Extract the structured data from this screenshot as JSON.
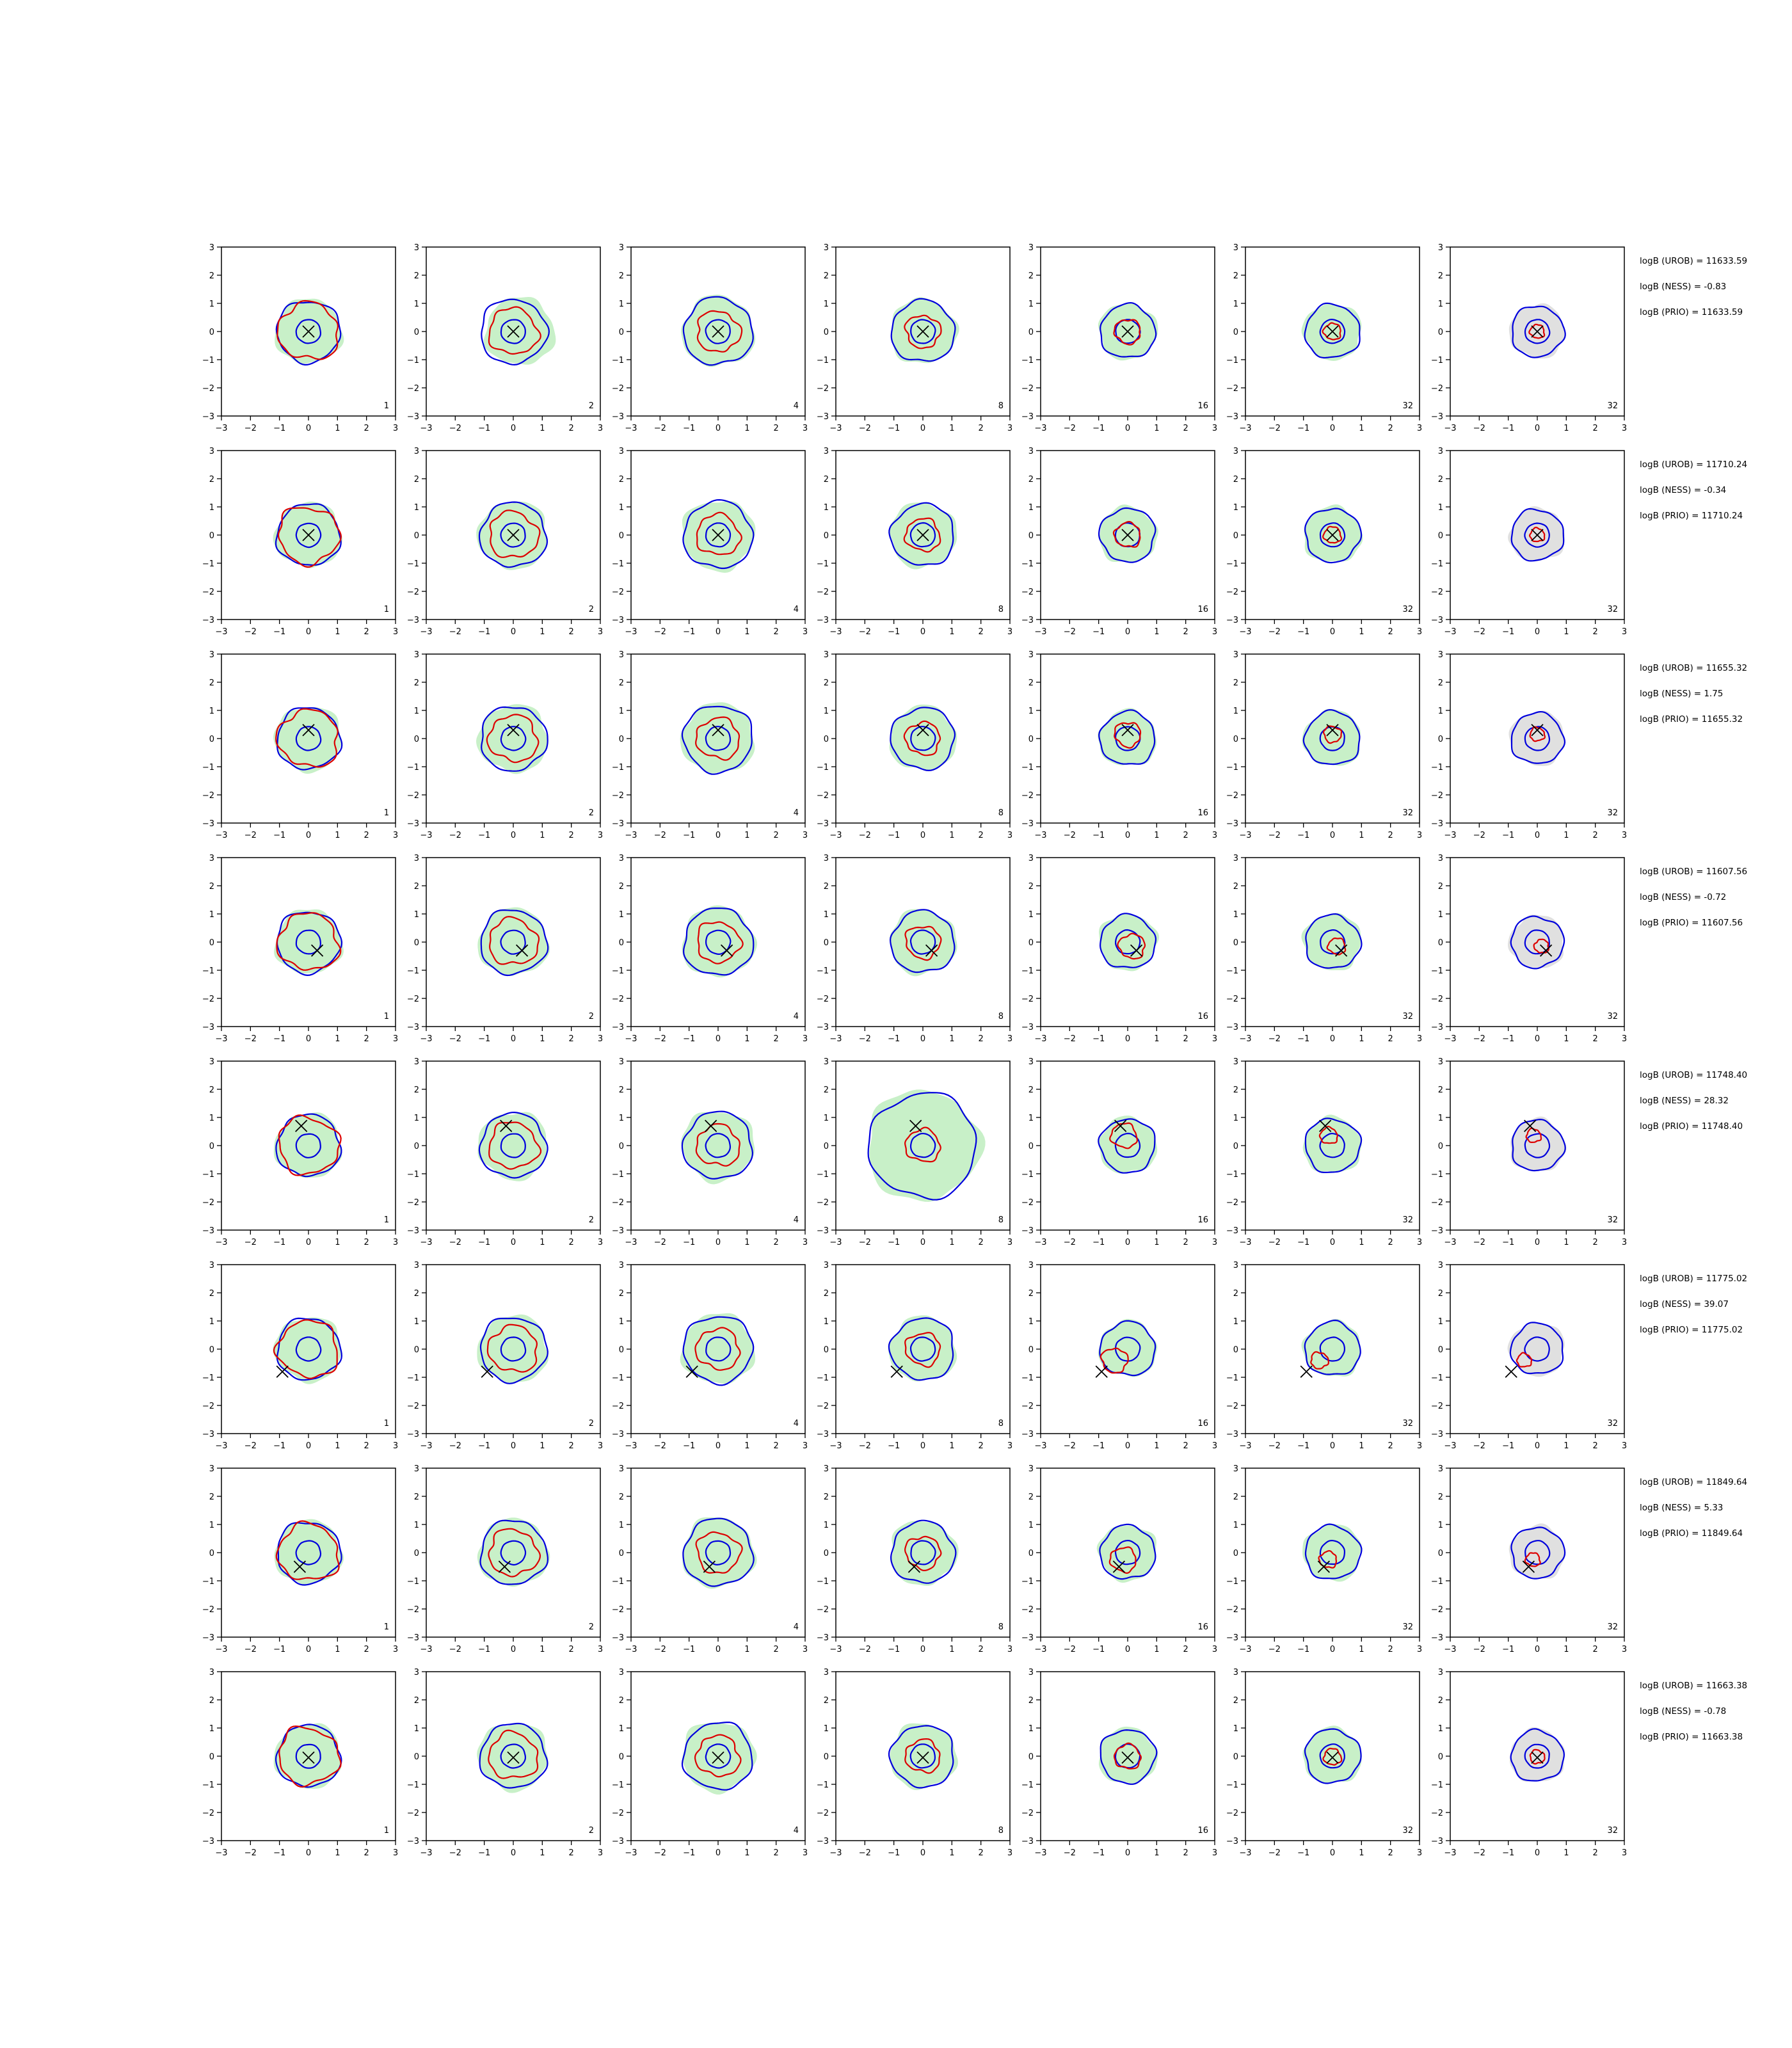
{
  "chart_data": {
    "type": "contour-grid",
    "xlim": [
      -3,
      3
    ],
    "ylim": [
      -3,
      3
    ],
    "xticks": [
      "−3",
      "−2",
      "−1",
      "0",
      "1",
      "2",
      "3"
    ],
    "yticks": [
      "3",
      "2",
      "1",
      "0",
      "−1",
      "−2",
      "−3"
    ],
    "column_labels": [
      "1",
      "2",
      "4",
      "8",
      "16",
      "32",
      "32"
    ],
    "rows": [
      {
        "marker": [
          0.0,
          0.0
        ],
        "annotations": [
          "logB (UROB) = 11633.59",
          "logB (NESS) = -0.83",
          "logB (PRIO) = 11633.59"
        ]
      },
      {
        "marker": [
          0.0,
          0.0
        ],
        "annotations": [
          "logB (UROB) = 11710.24",
          "logB (NESS) = -0.34",
          "logB (PRIO) = 11710.24"
        ]
      },
      {
        "marker": [
          0.0,
          0.3
        ],
        "annotations": [
          "logB (UROB) = 11655.32",
          "logB (NESS) = 1.75",
          "logB (PRIO) = 11655.32"
        ]
      },
      {
        "marker": [
          0.3,
          -0.3
        ],
        "annotations": [
          "logB (UROB) = 11607.56",
          "logB (NESS) = -0.72",
          "logB (PRIO) = 11607.56"
        ]
      },
      {
        "marker": [
          -0.25,
          0.7
        ],
        "annotations": [
          "logB (UROB) = 11748.40",
          "logB (NESS) = 28.32",
          "logB (PRIO) = 11748.40"
        ]
      },
      {
        "marker": [
          -0.9,
          -0.8
        ],
        "annotations": [
          "logB (UROB) = 11775.02",
          "logB (NESS) = 39.07",
          "logB (PRIO) = 11775.02"
        ]
      },
      {
        "marker": [
          -0.3,
          -0.5
        ],
        "annotations": [
          "logB (UROB) = 11849.64",
          "logB (NESS) = 5.33",
          "logB (PRIO) = 11849.64"
        ]
      },
      {
        "marker": [
          0.0,
          -0.05
        ],
        "annotations": [
          "logB (UROB) = 11663.38",
          "logB (NESS) = -0.78",
          "logB (PRIO) = 11663.38"
        ]
      }
    ],
    "colors": {
      "outer_contour": "#0000dd",
      "inner_circle": "#0000dd",
      "red_contour": "#dd0000",
      "fill": "#c8f0c8",
      "last_fill": "#e0e0e0"
    }
  }
}
